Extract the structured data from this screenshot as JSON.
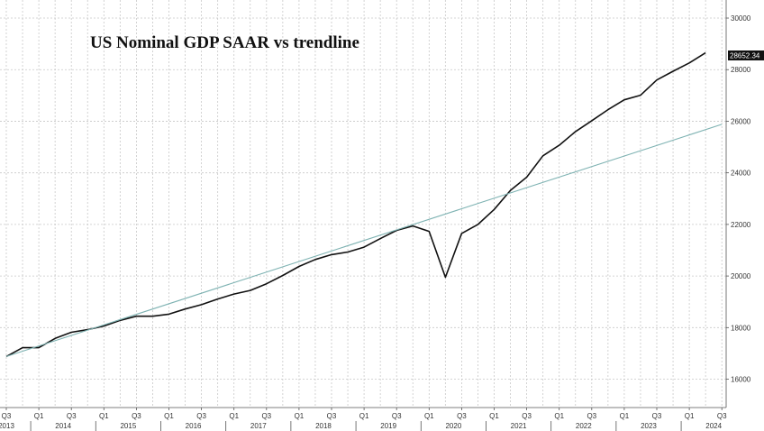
{
  "chart_data": {
    "type": "line",
    "title": "US Nominal GDP SAAR vs trendline",
    "xlabel": "",
    "ylabel": "",
    "x_tick_quarters": [
      "Q3",
      "Q1",
      "Q3",
      "Q1",
      "Q3",
      "Q1",
      "Q3",
      "Q1",
      "Q3",
      "Q1",
      "Q3",
      "Q1",
      "Q3",
      "Q1",
      "Q3",
      "Q1",
      "Q3",
      "Q1",
      "Q3",
      "Q1",
      "Q3",
      "Q1",
      "Q3"
    ],
    "x_tick_years": [
      "2013",
      "2014",
      "2015",
      "2016",
      "2017",
      "2018",
      "2019",
      "2020",
      "2021",
      "2022",
      "2023",
      "2024"
    ],
    "y_ticks": [
      16000,
      18000,
      20000,
      22000,
      24000,
      26000,
      28000,
      30000
    ],
    "ylim": [
      14900,
      30700
    ],
    "grid": true,
    "last_value_label": "28652.34",
    "series": [
      {
        "color": "#111111",
        "x": [
          "2013-Q3",
          "2013-Q4",
          "2014-Q1",
          "2014-Q2",
          "2014-Q3",
          "2014-Q4",
          "2015-Q1",
          "2015-Q2",
          "2015-Q3",
          "2015-Q4",
          "2016-Q1",
          "2016-Q2",
          "2016-Q3",
          "2016-Q4",
          "2017-Q1",
          "2017-Q2",
          "2017-Q3",
          "2017-Q4",
          "2018-Q1",
          "2018-Q2",
          "2018-Q3",
          "2018-Q4",
          "2019-Q1",
          "2019-Q2",
          "2019-Q3",
          "2019-Q4",
          "2020-Q1",
          "2020-Q2",
          "2020-Q3",
          "2020-Q4",
          "2021-Q1",
          "2021-Q2",
          "2021-Q3",
          "2021-Q4",
          "2022-Q1",
          "2022-Q2",
          "2022-Q3",
          "2022-Q4",
          "2023-Q1",
          "2023-Q2",
          "2023-Q3",
          "2023-Q4",
          "2024-Q1",
          "2024-Q2"
        ],
        "values": [
          16880,
          17220,
          17220,
          17580,
          17820,
          17920,
          18060,
          18280,
          18440,
          18440,
          18520,
          18720,
          18890,
          19110,
          19300,
          19440,
          19700,
          20020,
          20370,
          20640,
          20830,
          20930,
          21120,
          21450,
          21770,
          21940,
          21730,
          19950,
          21650,
          22000,
          22580,
          23320,
          23830,
          24660,
          25070,
          25600,
          26020,
          26450,
          26830,
          27010,
          27600,
          27940,
          28260,
          28652
        ]
      },
      {
        "color": "#7fb3b3",
        "x": [
          "2013-Q3",
          "2024-Q3"
        ],
        "values": [
          16880,
          25880
        ]
      }
    ]
  }
}
